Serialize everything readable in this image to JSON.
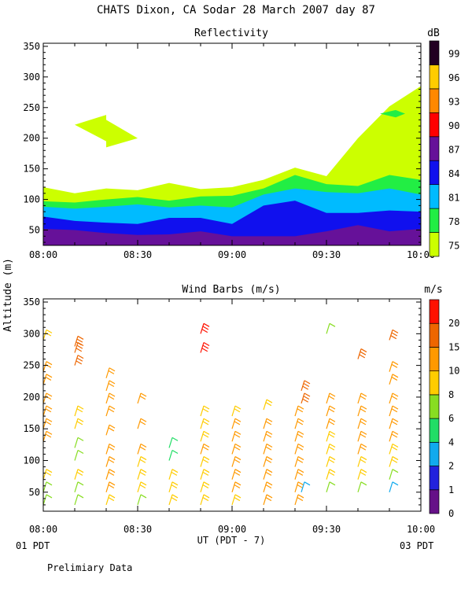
{
  "page": {
    "title": "CHATS Dixon, CA   Sodar  28 March 2007   day  87",
    "ylabel": "Altitude (m)",
    "xlabel": "UT  (PDT - 7)",
    "left_date": "01 PDT",
    "right_date": "03 PDT",
    "footnote": "Prelimiary Data"
  },
  "chart_data": [
    {
      "type": "area",
      "title": "Reflectivity",
      "colorbar_unit": "dB",
      "x_ticks": [
        "08:00",
        "08:30",
        "09:00",
        "09:30",
        "10:00"
      ],
      "y_ticks": [
        50,
        100,
        150,
        200,
        250,
        300,
        350
      ],
      "ylim": [
        25,
        355
      ],
      "xlim_minutes": [
        0,
        120
      ],
      "levels": [
        {
          "label": "75",
          "color": "#ccff00"
        },
        {
          "label": "78",
          "color": "#22ee44"
        },
        {
          "label": "81",
          "color": "#00bbff"
        },
        {
          "label": "84",
          "color": "#1010ee"
        },
        {
          "label": "87",
          "color": "#661199"
        },
        {
          "label": "90",
          "color": "#ff0000"
        },
        {
          "label": "93",
          "color": "#ff8800"
        },
        {
          "label": "96",
          "color": "#ffcc00"
        },
        {
          "label": "99",
          "color": "#220022"
        }
      ],
      "x_minutes": [
        0,
        10,
        20,
        30,
        40,
        50,
        60,
        70,
        80,
        90,
        100,
        110,
        120
      ],
      "boundaries": {
        "top_75": [
          120,
          110,
          118,
          115,
          127,
          117,
          120,
          132,
          152,
          138,
          200,
          252,
          285
        ],
        "top_78": [
          97,
          95,
          100,
          104,
          98,
          105,
          106,
          118,
          140,
          125,
          122,
          140,
          132
        ],
        "top_81": [
          88,
          85,
          88,
          92,
          87,
          90,
          87,
          108,
          118,
          112,
          110,
          118,
          108
        ],
        "top_84": [
          72,
          65,
          62,
          60,
          70,
          70,
          60,
          90,
          98,
          78,
          78,
          82,
          80
        ],
        "top_87": [
          52,
          50,
          45,
          42,
          43,
          48,
          40,
          40,
          40,
          48,
          58,
          48,
          52
        ]
      },
      "blobs_75": [
        [
          [
            10,
            222
          ],
          [
            20,
            238
          ],
          [
            20,
            230
          ],
          [
            30,
            200
          ],
          [
            20,
            185
          ],
          [
            20,
            195
          ],
          [
            10,
            222
          ]
        ]
      ],
      "blobs_78": [
        [
          [
            107,
            240
          ],
          [
            112,
            246
          ],
          [
            115,
            240
          ],
          [
            112,
            234
          ],
          [
            107,
            240
          ]
        ]
      ]
    },
    {
      "type": "scatter",
      "title": "Wind Barbs (m/s)",
      "colorbar_unit": "m/s",
      "x_ticks": [
        "08:00",
        "08:30",
        "09:00",
        "09:30",
        "10:00"
      ],
      "y_ticks": [
        50,
        100,
        150,
        200,
        250,
        300,
        350
      ],
      "ylim": [
        20,
        355
      ],
      "xlim_minutes": [
        0,
        120
      ],
      "levels": [
        {
          "label": "0",
          "color": "#661188"
        },
        {
          "label": "1",
          "color": "#2222dd"
        },
        {
          "label": "2",
          "color": "#11aaee"
        },
        {
          "label": "4",
          "color": "#22dd66"
        },
        {
          "label": "6",
          "color": "#88dd22"
        },
        {
          "label": "8",
          "color": "#ffcc00"
        },
        {
          "label": "10",
          "color": "#ff9900"
        },
        {
          "label": "15",
          "color": "#ee6600"
        },
        {
          "label": "20",
          "color": "#ff1100"
        }
      ],
      "columns": [
        {
          "t": 0,
          "alt": [
            30,
            50,
            70,
            130,
            150,
            170,
            190,
            220,
            240,
            290
          ],
          "speed": [
            6,
            6,
            8,
            10,
            10,
            10,
            10,
            10,
            10,
            8
          ]
        },
        {
          "t": 10,
          "alt": [
            30,
            50,
            70,
            100,
            120,
            150,
            170,
            250,
            270,
            280
          ],
          "speed": [
            6,
            6,
            8,
            6,
            6,
            8,
            8,
            15,
            15,
            15
          ]
        },
        {
          "t": 20,
          "alt": [
            30,
            50,
            70,
            90,
            110,
            140,
            170,
            190,
            210,
            230
          ],
          "speed": [
            8,
            10,
            10,
            10,
            10,
            10,
            10,
            10,
            10,
            10
          ]
        },
        {
          "t": 30,
          "alt": [
            30,
            50,
            70,
            90,
            110,
            150,
            190
          ],
          "speed": [
            6,
            8,
            8,
            8,
            10,
            10,
            10
          ]
        },
        {
          "t": 40,
          "alt": [
            30,
            50,
            70,
            100,
            120
          ],
          "speed": [
            8,
            8,
            8,
            4,
            4
          ]
        },
        {
          "t": 50,
          "alt": [
            30,
            50,
            70,
            90,
            110,
            130,
            150,
            170,
            270,
            300
          ],
          "speed": [
            8,
            8,
            8,
            8,
            10,
            8,
            8,
            8,
            20,
            20
          ]
        },
        {
          "t": 60,
          "alt": [
            30,
            50,
            70,
            90,
            110,
            130,
            150,
            170
          ],
          "speed": [
            8,
            10,
            10,
            10,
            10,
            10,
            10,
            8
          ]
        },
        {
          "t": 70,
          "alt": [
            30,
            50,
            70,
            90,
            110,
            130,
            150,
            180
          ],
          "speed": [
            10,
            10,
            10,
            10,
            10,
            10,
            10,
            8
          ]
        },
        {
          "t": 80,
          "alt": [
            30,
            50,
            70,
            90,
            110,
            130,
            150,
            170
          ],
          "speed": [
            10,
            10,
            10,
            10,
            10,
            10,
            10,
            10
          ]
        },
        {
          "t": 82,
          "alt": [
            50,
            190,
            210
          ],
          "speed": [
            2,
            15,
            15
          ]
        },
        {
          "t": 90,
          "alt": [
            50,
            70,
            90,
            110,
            130,
            150,
            170,
            190,
            300
          ],
          "speed": [
            6,
            8,
            8,
            8,
            8,
            10,
            10,
            10,
            6
          ]
        },
        {
          "t": 100,
          "alt": [
            50,
            70,
            90,
            110,
            130,
            150,
            170,
            190,
            260
          ],
          "speed": [
            6,
            8,
            8,
            10,
            10,
            10,
            10,
            10,
            15
          ]
        },
        {
          "t": 110,
          "alt": [
            50,
            70,
            90,
            110,
            130,
            150,
            170,
            190,
            220,
            240,
            290
          ],
          "speed": [
            2,
            6,
            8,
            8,
            10,
            10,
            10,
            10,
            10,
            10,
            15
          ]
        }
      ]
    }
  ]
}
